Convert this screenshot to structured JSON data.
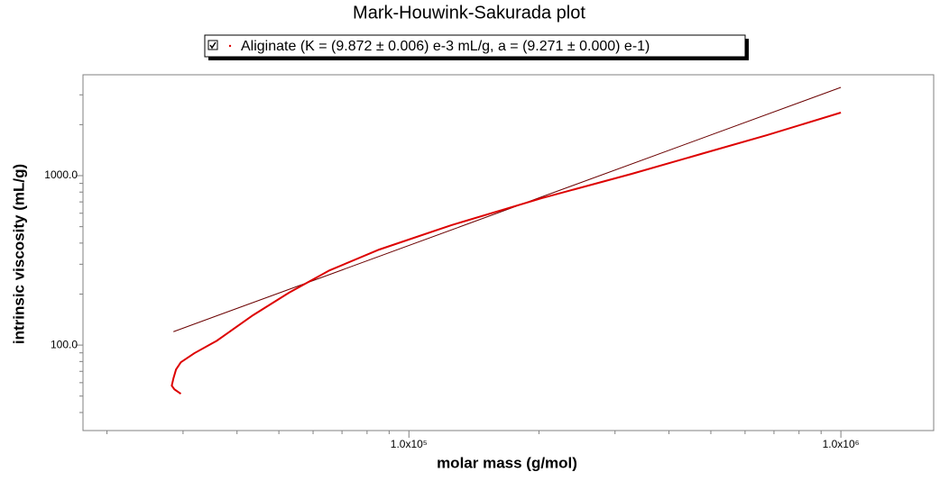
{
  "chart_data": {
    "type": "line",
    "title": "Mark-Houwink-Sakurada plot",
    "x_label": "molar mass (g/mol)",
    "y_label": "intrinsic viscosity (mL/g)",
    "x_log": true,
    "y_log": true,
    "xlim": [
      17600,
      1640000
    ],
    "ylim": [
      31.3,
      3940
    ],
    "xticks": [
      {
        "value": 100000,
        "label": "1.0x10⁵"
      },
      {
        "value": 1000000,
        "label": "1.0x10⁶"
      }
    ],
    "yticks": [
      {
        "value": 100,
        "label": "100.0"
      },
      {
        "value": 1000,
        "label": "1000.0"
      }
    ],
    "xminor": [
      20000,
      30000,
      40000,
      50000,
      60000,
      70000,
      80000,
      90000,
      200000,
      300000,
      400000,
      500000,
      600000,
      700000,
      800000,
      900000
    ],
    "yminor": [
      40,
      50,
      60,
      70,
      80,
      90,
      200,
      300,
      400,
      500,
      600,
      700,
      800,
      900,
      2000,
      3000
    ],
    "series": [
      {
        "name": "Aliginate (K = (9.872 ± 0.006) e-3 mL/g, a = (9.271 ± 0.000) e-1)",
        "color": "#dd0000",
        "x": [
          29650,
          28650,
          28250,
          28500,
          28900,
          29650,
          31850,
          35900,
          43550,
          52800,
          65500,
          85300,
          125300,
          202800,
          328000,
          482000,
          674000,
          1000000
        ],
        "values": [
          51.6,
          54.8,
          57.6,
          63.6,
          71.8,
          79.2,
          89.5,
          106,
          150,
          204,
          276,
          366,
          510,
          736,
          1025,
          1358,
          1734,
          2356
        ]
      },
      {
        "color": "#6b0000",
        "x": [
          28500,
          1000000
        ],
        "values": [
          120,
          3320
        ]
      }
    ]
  }
}
